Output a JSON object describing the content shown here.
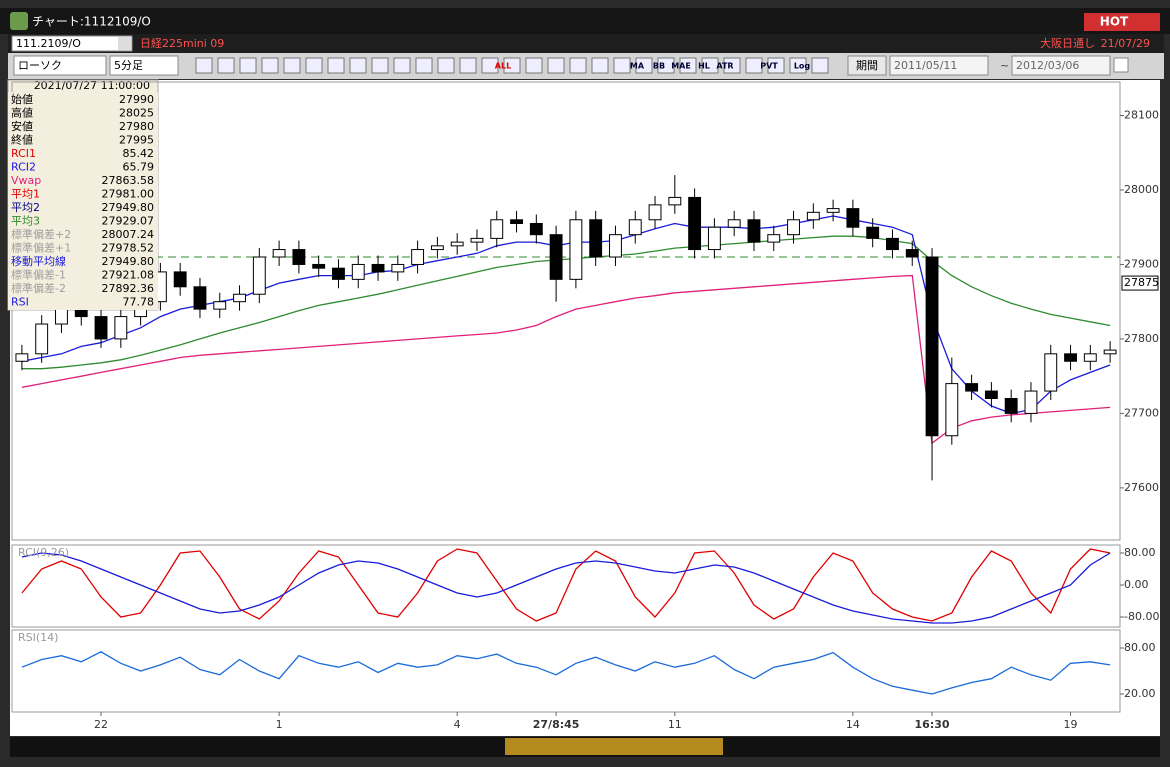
{
  "window": {
    "title": "チャート:1112109/O",
    "hot": "HOT"
  },
  "header": {
    "symbol": "111.2109/O",
    "name": "日経225mini 09",
    "session": "大阪日通し",
    "date": "21/07/29"
  },
  "toolbar": {
    "chart_style": "ローソク",
    "interval": "5分足",
    "period_button": "期間",
    "from": "2011/05/11",
    "to": "2012/03/06",
    "icon_labels": [
      "ALL",
      "MA",
      "BB",
      "MAE",
      "HL",
      "ATR",
      "PVT",
      "Log"
    ]
  },
  "info_panel": {
    "datetime": "2021/07/27 11:00:00",
    "rows": [
      {
        "label": "始値",
        "value": "27990",
        "color": "#000000"
      },
      {
        "label": "高値",
        "value": "28025",
        "color": "#000000"
      },
      {
        "label": "安値",
        "value": "27980",
        "color": "#000000"
      },
      {
        "label": "終値",
        "value": "27995",
        "color": "#000000"
      },
      {
        "label": "RCI1",
        "value": "85.42",
        "color": "#e00000"
      },
      {
        "label": "RCI2",
        "value": "65.79",
        "color": "#1a1adb"
      },
      {
        "label": "Vwap",
        "value": "27863.58",
        "color": "#e0207a"
      },
      {
        "label": "平均1",
        "value": "27981.00",
        "color": "#e00000"
      },
      {
        "label": "平均2",
        "value": "27949.80",
        "color": "#000080"
      },
      {
        "label": "平均3",
        "value": "27929.07",
        "color": "#2e8b2e"
      },
      {
        "label": "標準偏差+2",
        "value": "28007.24",
        "color": "#a0a0a0"
      },
      {
        "label": "標準偏差+1",
        "value": "27978.52",
        "color": "#a0a0a0"
      },
      {
        "label": "移動平均線",
        "value": "27949.80",
        "color": "#1a1adb"
      },
      {
        "label": "標準偏差-1",
        "value": "27921.08",
        "color": "#a0a0a0"
      },
      {
        "label": "標準偏差-2",
        "value": "27892.36",
        "color": "#a0a0a0"
      },
      {
        "label": "RSI",
        "value": "77.78",
        "color": "#1a1adb"
      }
    ]
  },
  "chart_data": [
    {
      "type": "candlestick",
      "categories": [
        null,
        null,
        null,
        null,
        "22",
        null,
        null,
        null,
        null,
        null,
        null,
        null,
        null,
        "1",
        null,
        null,
        null,
        null,
        null,
        null,
        null,
        null,
        "4",
        null,
        null,
        null,
        null,
        "27/8:45",
        null,
        null,
        null,
        null,
        null,
        "11",
        null,
        null,
        null,
        null,
        null,
        null,
        null,
        null,
        "14",
        null,
        null,
        null,
        "16:30",
        null,
        null,
        null,
        null,
        null,
        null,
        "19",
        null,
        null
      ],
      "open": [
        27770,
        27780,
        27820,
        27840,
        27830,
        27800,
        27830,
        27850,
        27890,
        27870,
        27840,
        27850,
        27860,
        27910,
        27920,
        27900,
        27895,
        27880,
        27900,
        27890,
        27900,
        27920,
        27925,
        27930,
        27935,
        27960,
        27955,
        27940,
        27880,
        27960,
        27910,
        27940,
        27960,
        27980,
        27990,
        27920,
        27950,
        27960,
        27930,
        27940,
        27960,
        27970,
        27975,
        27950,
        27935,
        27920,
        27910,
        27670,
        27740,
        27730,
        27720,
        27700,
        27730,
        27780,
        27770,
        27780
      ],
      "high": [
        27792,
        27832,
        27852,
        27852,
        27842,
        27842,
        27862,
        27902,
        27902,
        27882,
        27862,
        27872,
        27922,
        27932,
        27932,
        27912,
        27907,
        27912,
        27912,
        27912,
        27932,
        27937,
        27942,
        27947,
        27972,
        27972,
        27967,
        27952,
        27972,
        27972,
        27952,
        27972,
        27992,
        28020,
        28002,
        27962,
        27972,
        27972,
        27952,
        27972,
        27982,
        27987,
        27987,
        27962,
        27947,
        27932,
        27922,
        27775,
        27752,
        27742,
        27732,
        27742,
        27792,
        27792,
        27792,
        27797
      ],
      "low": [
        27758,
        27768,
        27808,
        27818,
        27788,
        27788,
        27818,
        27838,
        27858,
        27828,
        27828,
        27838,
        27848,
        27898,
        27888,
        27883,
        27868,
        27868,
        27878,
        27878,
        27888,
        27908,
        27913,
        27918,
        27923,
        27943,
        27928,
        27850,
        27868,
        27898,
        27898,
        27928,
        27948,
        27968,
        27908,
        27908,
        27938,
        27918,
        27918,
        27928,
        27948,
        27958,
        27938,
        27923,
        27908,
        27898,
        27610,
        27658,
        27718,
        27708,
        27688,
        27688,
        27718,
        27758,
        27758,
        27768
      ],
      "close": [
        27780,
        27820,
        27840,
        27830,
        27800,
        27830,
        27850,
        27890,
        27870,
        27840,
        27850,
        27860,
        27910,
        27920,
        27900,
        27895,
        27880,
        27900,
        27890,
        27900,
        27920,
        27925,
        27930,
        27935,
        27960,
        27955,
        27940,
        27880,
        27960,
        27910,
        27940,
        27960,
        27980,
        27990,
        27920,
        27950,
        27960,
        27930,
        27940,
        27960,
        27970,
        27975,
        27950,
        27935,
        27920,
        27910,
        27670,
        27740,
        27730,
        27720,
        27700,
        27730,
        27780,
        27770,
        27780,
        27785
      ],
      "up_color": "#ffffff",
      "down_color": "#000000",
      "series": [
        {
          "name": "Vwap",
          "color": "#e0207a",
          "values": [
            27735,
            27740,
            27745,
            27750,
            27755,
            27760,
            27765,
            27770,
            27775,
            27778,
            27780,
            27782,
            27784,
            27786,
            27788,
            27790,
            27792,
            27794,
            27796,
            27798,
            27800,
            27802,
            27804,
            27806,
            27808,
            27812,
            27818,
            27830,
            27840,
            27845,
            27850,
            27855,
            27858,
            27862,
            27864,
            27866,
            27868,
            27870,
            27872,
            27874,
            27876,
            27878,
            27880,
            27882,
            27884,
            27885,
            27660,
            27680,
            27690,
            27695,
            27698,
            27700,
            27702,
            27704,
            27706,
            27708
          ]
        },
        {
          "name": "平均3",
          "color": "#2e8b2e",
          "values": [
            27760,
            27760,
            27762,
            27765,
            27768,
            27772,
            27778,
            27785,
            27792,
            27800,
            27808,
            27815,
            27822,
            27830,
            27838,
            27845,
            27850,
            27855,
            27860,
            27866,
            27872,
            27878,
            27884,
            27890,
            27896,
            27900,
            27904,
            27906,
            27908,
            27910,
            27912,
            27914,
            27918,
            27922,
            27924,
            27926,
            27928,
            27930,
            27932,
            27934,
            27936,
            27938,
            27938,
            27936,
            27932,
            27928,
            27905,
            27885,
            27870,
            27858,
            27848,
            27840,
            27833,
            27828,
            27823,
            27818
          ]
        },
        {
          "name": "平均2",
          "color": "#1a1adb",
          "values": [
            27770,
            27775,
            27780,
            27790,
            27795,
            27805,
            27815,
            27830,
            27840,
            27845,
            27850,
            27855,
            27865,
            27875,
            27880,
            27885,
            27885,
            27885,
            27890,
            27892,
            27900,
            27905,
            27910,
            27915,
            27925,
            27930,
            27930,
            27925,
            27930,
            27930,
            27932,
            27940,
            27948,
            27955,
            27950,
            27950,
            27950,
            27948,
            27950,
            27955,
            27960,
            27965,
            27960,
            27955,
            27950,
            27940,
            27830,
            27760,
            27730,
            27710,
            27700,
            27705,
            27730,
            27745,
            27755,
            27765
          ]
        }
      ],
      "ylim": [
        27530,
        28145
      ],
      "yticks": [
        27600,
        27700,
        27800,
        27900,
        28000,
        28100
      ],
      "last_price": 27875,
      "level_line": 27910,
      "level_color": "#2e8b2e"
    },
    {
      "type": "line",
      "label": "RCI(9,26)",
      "series": [
        {
          "name": "RCI1",
          "color": "#e00000",
          "values": [
            -20,
            40,
            60,
            40,
            -30,
            -80,
            -70,
            0,
            80,
            85,
            20,
            -60,
            -85,
            -40,
            30,
            85,
            70,
            0,
            -70,
            -80,
            -20,
            60,
            90,
            80,
            10,
            -60,
            -90,
            -70,
            40,
            85,
            60,
            -30,
            -80,
            -20,
            80,
            85,
            30,
            -50,
            -85,
            -60,
            20,
            80,
            60,
            -20,
            -60,
            -80,
            -90,
            -70,
            20,
            85,
            60,
            -20,
            -70,
            40,
            90,
            80
          ]
        },
        {
          "name": "RCI2",
          "color": "#1a1adb",
          "values": [
            70,
            80,
            75,
            60,
            40,
            20,
            0,
            -20,
            -40,
            -60,
            -70,
            -65,
            -50,
            -30,
            0,
            30,
            50,
            60,
            55,
            40,
            20,
            0,
            -20,
            -30,
            -20,
            0,
            20,
            40,
            55,
            60,
            55,
            45,
            35,
            30,
            40,
            50,
            45,
            30,
            10,
            -10,
            -30,
            -50,
            -65,
            -75,
            -85,
            -90,
            -95,
            -95,
            -90,
            -80,
            -60,
            -40,
            -20,
            0,
            50,
            80
          ]
        }
      ],
      "ylim": [
        -105,
        100
      ],
      "yticks": [
        {
          "value": 80,
          "label": "80.00"
        },
        {
          "value": 0,
          "label": "0.00"
        },
        {
          "value": -80,
          "label": "-80.00"
        }
      ]
    },
    {
      "type": "line",
      "label": "RSI(14)",
      "series": [
        {
          "name": "RSI",
          "color": "#1a6bdb",
          "values": [
            55,
            65,
            70,
            62,
            75,
            60,
            50,
            58,
            68,
            52,
            45,
            65,
            50,
            40,
            70,
            60,
            55,
            62,
            48,
            60,
            55,
            58,
            70,
            66,
            72,
            60,
            55,
            45,
            60,
            68,
            58,
            50,
            62,
            55,
            60,
            70,
            52,
            40,
            55,
            60,
            65,
            74,
            55,
            40,
            30,
            25,
            20,
            28,
            35,
            40,
            55,
            45,
            38,
            60,
            62,
            58
          ]
        }
      ],
      "ylim": [
        -3.5,
        103.5
      ],
      "yticks": [
        {
          "value": 80,
          "label": "80.00"
        },
        {
          "value": 20,
          "label": "20.00"
        }
      ]
    }
  ]
}
